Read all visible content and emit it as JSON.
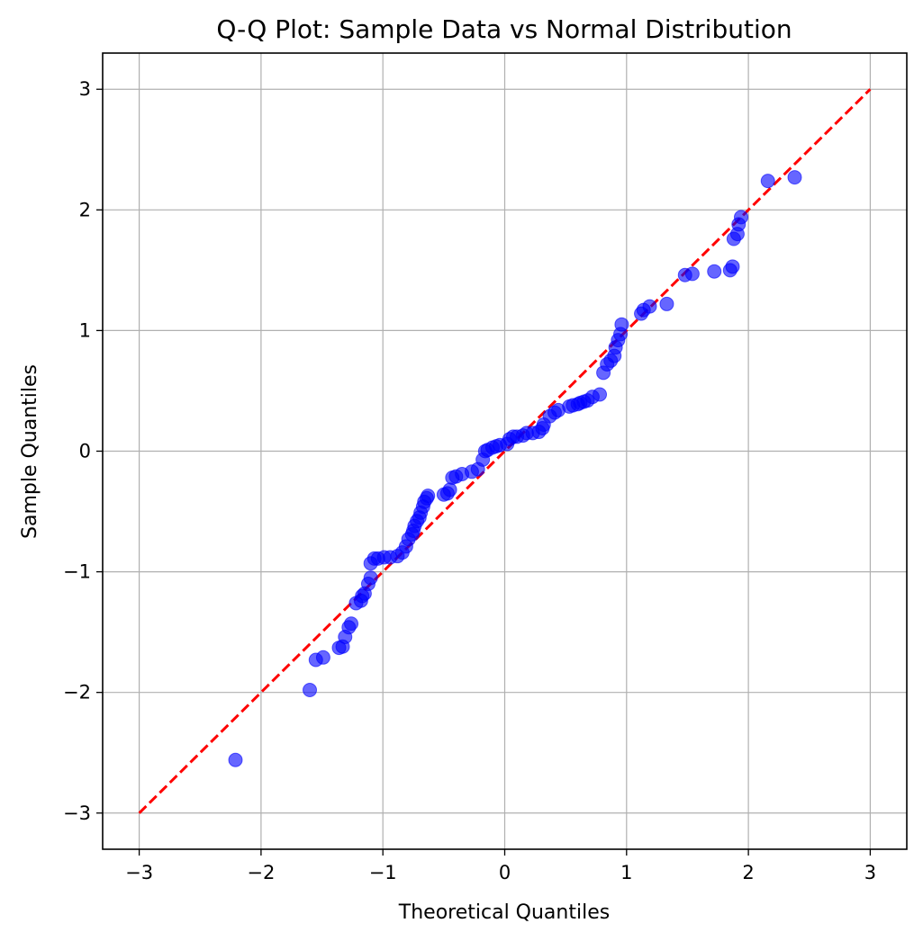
{
  "chart_data": {
    "type": "scatter",
    "title": "Q-Q Plot: Sample Data vs Normal Distribution",
    "xlabel": "Theoretical Quantiles",
    "ylabel": "Sample Quantiles",
    "xlim": [
      -3.3,
      3.3
    ],
    "ylim": [
      -3.3,
      3.3
    ],
    "xticks": [
      -3,
      -2,
      -1,
      0,
      1,
      2,
      3
    ],
    "yticks": [
      -3,
      -2,
      -1,
      0,
      1,
      2,
      3
    ],
    "xtick_labels": [
      "−3",
      "−2",
      "−1",
      "0",
      "1",
      "2",
      "3"
    ],
    "ytick_labels": [
      "−3",
      "−2",
      "−1",
      "0",
      "1",
      "2",
      "3"
    ],
    "grid": true,
    "reference_line": {
      "x": [
        -3,
        3
      ],
      "y": [
        -3,
        3
      ],
      "color": "#ff0000",
      "style": "dashed"
    },
    "point_color": "#0000ff",
    "line_color": "#ff0000",
    "points": [
      [
        -2.21,
        -2.56
      ],
      [
        -1.6,
        -1.98
      ],
      [
        -1.55,
        -1.73
      ],
      [
        -1.49,
        -1.71
      ],
      [
        -1.36,
        -1.63
      ],
      [
        -1.33,
        -1.62
      ],
      [
        -1.31,
        -1.54
      ],
      [
        -1.28,
        -1.46
      ],
      [
        -1.26,
        -1.43
      ],
      [
        -1.22,
        -1.26
      ],
      [
        -1.18,
        -1.24
      ],
      [
        -1.17,
        -1.2
      ],
      [
        -1.15,
        -1.18
      ],
      [
        -1.12,
        -1.1
      ],
      [
        -1.1,
        -1.05
      ],
      [
        -1.1,
        -0.93
      ],
      [
        -1.07,
        -0.89
      ],
      [
        -1.04,
        -0.89
      ],
      [
        -0.99,
        -0.88
      ],
      [
        -0.94,
        -0.88
      ],
      [
        -0.88,
        -0.87
      ],
      [
        -0.84,
        -0.84
      ],
      [
        -0.81,
        -0.79
      ],
      [
        -0.79,
        -0.73
      ],
      [
        -0.76,
        -0.69
      ],
      [
        -0.75,
        -0.66
      ],
      [
        -0.74,
        -0.62
      ],
      [
        -0.72,
        -0.58
      ],
      [
        -0.7,
        -0.55
      ],
      [
        -0.69,
        -0.51
      ],
      [
        -0.67,
        -0.46
      ],
      [
        -0.66,
        -0.42
      ],
      [
        -0.64,
        -0.39
      ],
      [
        -0.63,
        -0.37
      ],
      [
        -0.5,
        -0.36
      ],
      [
        -0.47,
        -0.35
      ],
      [
        -0.45,
        -0.32
      ],
      [
        -0.43,
        -0.22
      ],
      [
        -0.4,
        -0.21
      ],
      [
        -0.35,
        -0.19
      ],
      [
        -0.27,
        -0.17
      ],
      [
        -0.22,
        -0.15
      ],
      [
        -0.18,
        -0.07
      ],
      [
        -0.16,
        0.0
      ],
      [
        -0.14,
        0.01
      ],
      [
        -0.1,
        0.03
      ],
      [
        -0.07,
        0.04
      ],
      [
        -0.04,
        0.05
      ],
      [
        0.02,
        0.06
      ],
      [
        0.04,
        0.1
      ],
      [
        0.07,
        0.12
      ],
      [
        0.1,
        0.12
      ],
      [
        0.15,
        0.13
      ],
      [
        0.18,
        0.15
      ],
      [
        0.23,
        0.15
      ],
      [
        0.28,
        0.16
      ],
      [
        0.31,
        0.19
      ],
      [
        0.32,
        0.22
      ],
      [
        0.37,
        0.29
      ],
      [
        0.41,
        0.32
      ],
      [
        0.44,
        0.34
      ],
      [
        0.53,
        0.37
      ],
      [
        0.56,
        0.38
      ],
      [
        0.6,
        0.39
      ],
      [
        0.62,
        0.4
      ],
      [
        0.65,
        0.41
      ],
      [
        0.68,
        0.42
      ],
      [
        0.72,
        0.45
      ],
      [
        0.78,
        0.47
      ],
      [
        0.81,
        0.65
      ],
      [
        0.84,
        0.72
      ],
      [
        0.87,
        0.75
      ],
      [
        0.9,
        0.79
      ],
      [
        0.91,
        0.86
      ],
      [
        0.93,
        0.92
      ],
      [
        0.95,
        0.97
      ],
      [
        0.96,
        1.05
      ],
      [
        1.12,
        1.14
      ],
      [
        1.14,
        1.17
      ],
      [
        1.19,
        1.2
      ],
      [
        1.33,
        1.22
      ],
      [
        1.48,
        1.46
      ],
      [
        1.54,
        1.47
      ],
      [
        1.72,
        1.49
      ],
      [
        1.85,
        1.5
      ],
      [
        1.87,
        1.53
      ],
      [
        1.88,
        1.76
      ],
      [
        1.91,
        1.8
      ],
      [
        1.92,
        1.88
      ],
      [
        1.94,
        1.94
      ],
      [
        2.16,
        2.24
      ],
      [
        2.38,
        2.27
      ]
    ]
  }
}
